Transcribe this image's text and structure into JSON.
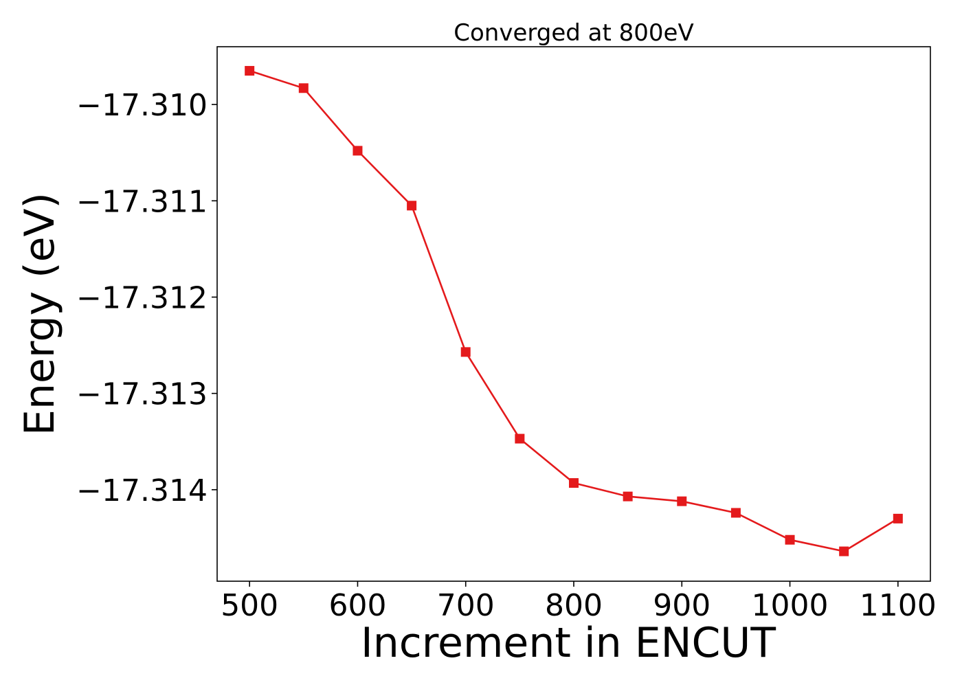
{
  "chart_data": {
    "type": "line",
    "title": "Converged at 800eV",
    "xlabel": "Increment in ENCUT",
    "ylabel": "Energy (eV)",
    "xlim": [
      470,
      1130
    ],
    "ylim": [
      -17.31495,
      -17.3094
    ],
    "xticks": [
      500,
      600,
      700,
      800,
      900,
      1000,
      1100
    ],
    "yticks": [
      -17.31,
      -17.311,
      -17.312,
      -17.313,
      -17.314
    ],
    "ytick_labels": [
      "−17.310",
      "−17.311",
      "−17.312",
      "−17.313",
      "−17.314"
    ],
    "grid": false,
    "legend": "none",
    "series": [
      {
        "color": "#e41a1c",
        "marker": "square",
        "x": [
          500,
          550,
          600,
          650,
          700,
          750,
          800,
          850,
          900,
          950,
          1000,
          1050,
          1100
        ],
        "y": [
          -17.30965,
          -17.30983,
          -17.31048,
          -17.31105,
          -17.31257,
          -17.31347,
          -17.31393,
          -17.31407,
          -17.31412,
          -17.31424,
          -17.31452,
          -17.31464,
          -17.3143
        ]
      }
    ]
  }
}
